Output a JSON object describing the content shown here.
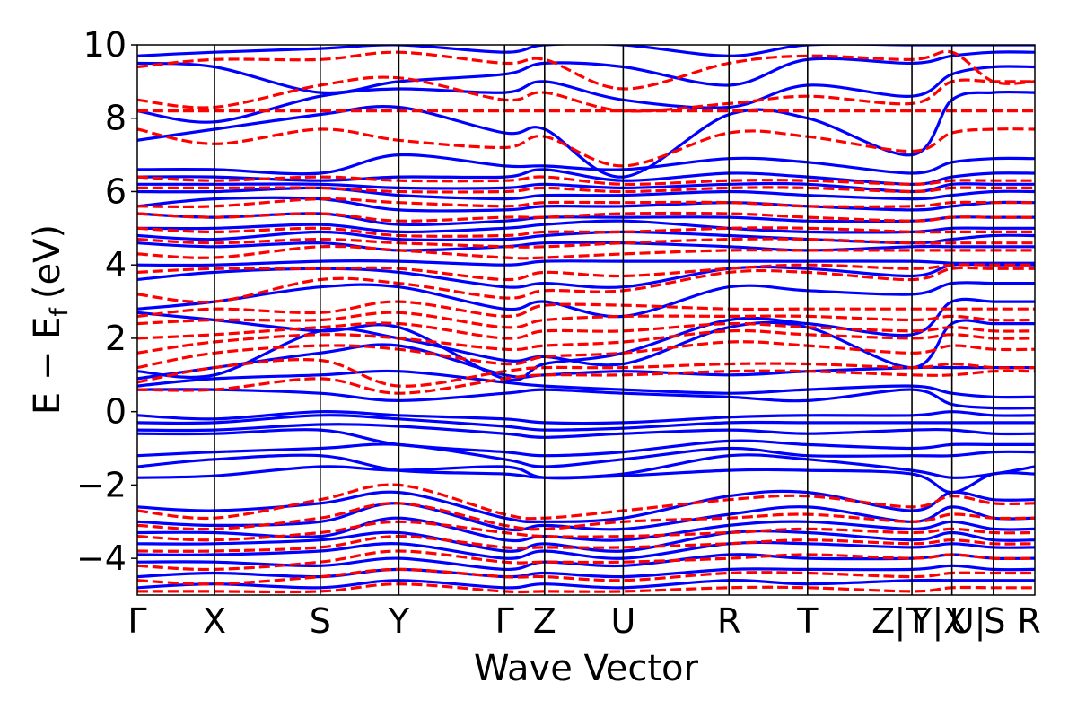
{
  "chart_data": {
    "type": "line",
    "title": "",
    "xlabel": "Wave Vector",
    "ylabel_main": "E − E",
    "ylabel_sub": "f",
    "ylabel_unit": "(eV)",
    "ylim": [
      -5,
      10
    ],
    "yticks": [
      -4,
      -2,
      0,
      2,
      4,
      6,
      8,
      10
    ],
    "ytick_labels": [
      "−4",
      "−2",
      "0",
      "2",
      "4",
      "6",
      "8",
      "10"
    ],
    "xlim": [
      0,
      3.14
    ],
    "kpoints": [
      {
        "label": "Γ",
        "x": 0.0
      },
      {
        "label": "X",
        "x": 0.27
      },
      {
        "label": "S",
        "x": 0.64
      },
      {
        "label": "Y",
        "x": 0.915
      },
      {
        "label": "Γ",
        "x": 1.285
      },
      {
        "label": "Z",
        "x": 1.425
      },
      {
        "label": "U",
        "x": 1.7
      },
      {
        "label": "R",
        "x": 2.07
      },
      {
        "label": "T",
        "x": 2.345
      },
      {
        "label": "Z",
        "x": 2.61
      },
      {
        "label": "|T",
        "x": 2.705
      },
      {
        "label": "Y|X",
        "x": 2.805
      },
      {
        "label": "U|",
        "x": 2.905
      },
      {
        "label": "S",
        "x": 3.0
      },
      {
        "label": "R",
        "x": 3.12
      }
    ],
    "vlines": [
      0.27,
      0.64,
      0.915,
      1.285,
      1.425,
      1.7,
      2.07,
      2.345,
      2.71,
      2.85,
      2.995
    ],
    "series": [
      {
        "style": "solid",
        "color": "#0000ff",
        "bands_x": [
          0,
          0.27,
          0.64,
          0.915,
          1.285,
          1.425,
          1.7,
          2.07,
          2.345,
          2.71,
          2.85,
          2.995,
          3.14
        ],
        "bands": [
          [
            -1.8,
            -1.75,
            -1.5,
            -1.6,
            -1.5,
            -1.8,
            -1.75,
            -1.6,
            -1.6,
            -1.7,
            -2.2,
            -1.7,
            -1.7
          ],
          [
            -1.5,
            -1.3,
            -1.2,
            -1.6,
            -1.7,
            -1.8,
            -1.7,
            -1.2,
            -1.3,
            -1.6,
            -1.8,
            -1.7,
            -1.5
          ],
          [
            -1.2,
            -1.1,
            -1.0,
            -0.9,
            -1.3,
            -1.5,
            -1.3,
            -1.0,
            -1.2,
            -1.2,
            -1.2,
            -1.1,
            -1.1
          ],
          [
            -0.6,
            -0.6,
            -0.5,
            -0.9,
            -1.1,
            -1.2,
            -1.1,
            -0.8,
            -0.9,
            -1.0,
            -0.9,
            -0.9,
            -0.9
          ],
          [
            -0.5,
            -0.5,
            -0.35,
            -0.4,
            -0.6,
            -0.7,
            -0.6,
            -0.5,
            -0.6,
            -0.5,
            -0.5,
            -0.6,
            -0.6
          ],
          [
            -0.3,
            -0.3,
            -0.1,
            -0.2,
            -0.4,
            -0.5,
            -0.45,
            -0.3,
            -0.3,
            -0.3,
            -0.3,
            -0.3,
            -0.3
          ],
          [
            -0.1,
            -0.2,
            0.0,
            -0.1,
            -0.2,
            -0.3,
            -0.3,
            -0.15,
            -0.1,
            -0.1,
            0.0,
            -0.1,
            -0.1
          ],
          [
            0.6,
            0.6,
            0.5,
            0.3,
            0.5,
            0.6,
            0.5,
            0.4,
            0.3,
            0.6,
            0.2,
            0.1,
            0.1
          ],
          [
            0.7,
            0.9,
            1.0,
            1.1,
            0.8,
            0.7,
            0.6,
            0.5,
            0.6,
            0.7,
            0.5,
            0.4,
            0.4
          ],
          [
            0.9,
            1.2,
            1.6,
            1.8,
            1.0,
            1.0,
            1.1,
            1.0,
            1.1,
            1.2,
            1.2,
            1.2,
            1.2
          ],
          [
            1.1,
            1.0,
            2.2,
            2.0,
            1.4,
            1.5,
            1.3,
            2.3,
            2.3,
            1.2,
            2.4,
            2.4,
            2.4
          ],
          [
            2.7,
            2.5,
            2.2,
            2.3,
            0.9,
            1.3,
            1.6,
            2.5,
            2.4,
            2.1,
            3.0,
            3.0,
            3.0
          ],
          [
            2.8,
            3.0,
            3.4,
            3.4,
            2.8,
            3.0,
            2.6,
            3.4,
            3.3,
            3.2,
            3.5,
            3.5,
            3.5
          ],
          [
            3.6,
            3.8,
            3.9,
            3.8,
            3.4,
            3.5,
            3.4,
            3.9,
            3.9,
            3.7,
            4.0,
            4.0,
            4.0
          ],
          [
            4.0,
            4.0,
            4.1,
            4.1,
            4.0,
            4.1,
            4.1,
            4.1,
            4.1,
            4.1,
            4.05,
            4.05,
            4.05
          ],
          [
            4.6,
            4.5,
            4.6,
            4.4,
            4.5,
            4.6,
            4.6,
            4.5,
            4.4,
            4.5,
            4.5,
            4.5,
            4.5
          ],
          [
            4.8,
            4.7,
            4.9,
            4.7,
            4.7,
            4.8,
            4.9,
            4.8,
            4.7,
            4.6,
            4.7,
            4.8,
            4.8
          ],
          [
            5.0,
            5.0,
            5.1,
            4.9,
            5.0,
            5.1,
            5.2,
            5.0,
            4.9,
            4.9,
            5.0,
            5.0,
            5.0
          ],
          [
            5.4,
            5.3,
            5.4,
            5.1,
            5.2,
            5.3,
            5.3,
            5.3,
            5.2,
            5.2,
            5.3,
            5.3,
            5.3
          ],
          [
            5.6,
            5.8,
            5.8,
            5.5,
            5.5,
            5.6,
            5.6,
            5.7,
            5.6,
            5.5,
            5.6,
            5.7,
            5.7
          ],
          [
            6.0,
            6.0,
            6.1,
            5.9,
            5.8,
            5.9,
            5.9,
            6.0,
            5.9,
            5.8,
            5.9,
            6.0,
            6.0
          ],
          [
            6.2,
            6.2,
            6.2,
            6.1,
            6.1,
            6.2,
            6.1,
            6.2,
            6.2,
            6.0,
            6.2,
            6.2,
            6.2
          ],
          [
            6.4,
            6.4,
            6.3,
            6.4,
            6.4,
            6.6,
            6.3,
            6.5,
            6.4,
            6.2,
            6.4,
            6.5,
            6.5
          ],
          [
            6.6,
            6.6,
            6.5,
            7.0,
            6.7,
            6.7,
            6.6,
            6.9,
            6.8,
            6.5,
            6.8,
            6.9,
            6.9
          ],
          [
            7.4,
            7.7,
            8.1,
            8.3,
            7.6,
            7.7,
            6.4,
            8.1,
            8.0,
            7.0,
            8.5,
            8.7,
            8.7
          ],
          [
            8.2,
            7.9,
            8.6,
            8.8,
            8.7,
            9.0,
            8.5,
            8.3,
            8.9,
            8.6,
            9.2,
            9.4,
            9.4
          ],
          [
            9.5,
            9.4,
            8.7,
            9.0,
            9.2,
            9.5,
            9.4,
            8.9,
            9.6,
            9.5,
            9.7,
            9.8,
            9.8
          ],
          [
            9.7,
            9.8,
            9.9,
            10.0,
            9.8,
            10.0,
            10.0,
            9.7,
            10.0,
            10.0,
            10.0,
            10.0,
            10.0
          ],
          [
            -2.6,
            -2.7,
            -2.5,
            -2.2,
            -2.9,
            -3.0,
            -2.9,
            -2.3,
            -2.2,
            -2.7,
            -2.2,
            -2.4,
            -2.4
          ],
          [
            -3.0,
            -3.1,
            -3.0,
            -2.5,
            -3.2,
            -3.1,
            -3.2,
            -2.8,
            -2.6,
            -3.0,
            -2.6,
            -2.9,
            -2.9
          ],
          [
            -3.3,
            -3.3,
            -3.4,
            -2.9,
            -3.5,
            -3.4,
            -3.5,
            -3.1,
            -3.0,
            -3.2,
            -3.0,
            -3.2,
            -3.2
          ],
          [
            -3.6,
            -3.6,
            -3.5,
            -3.3,
            -3.8,
            -3.6,
            -3.8,
            -3.3,
            -3.3,
            -3.5,
            -3.3,
            -3.5,
            -3.5
          ],
          [
            -3.9,
            -3.9,
            -3.8,
            -3.6,
            -4.0,
            -3.8,
            -4.0,
            -3.6,
            -3.6,
            -3.7,
            -3.6,
            -3.7,
            -3.7
          ],
          [
            -4.1,
            -4.1,
            -4.2,
            -4.0,
            -4.3,
            -4.1,
            -4.2,
            -3.9,
            -4.0,
            -4.0,
            -3.9,
            -4.0,
            -4.0
          ],
          [
            -4.5,
            -4.4,
            -4.5,
            -4.3,
            -4.5,
            -4.4,
            -4.5,
            -4.3,
            -4.3,
            -4.3,
            -4.2,
            -4.3,
            -4.3
          ],
          [
            -4.8,
            -4.7,
            -4.8,
            -4.6,
            -4.8,
            -4.7,
            -4.8,
            -4.6,
            -4.7,
            -4.6,
            -4.6,
            -4.6,
            -4.6
          ]
        ]
      },
      {
        "style": "dashed",
        "color": "#ff0000",
        "bands_x": [
          0,
          0.27,
          0.64,
          0.915,
          1.285,
          1.425,
          1.7,
          2.07,
          2.345,
          2.71,
          2.85,
          2.995,
          3.14
        ],
        "bands": [
          [
            0.6,
            0.6,
            0.9,
            0.5,
            0.9,
            1.0,
            1.0,
            1.1,
            1.1,
            1.0,
            1.0,
            1.1,
            1.1
          ],
          [
            0.8,
            1.2,
            1.4,
            0.7,
            1.1,
            1.2,
            1.2,
            1.3,
            1.3,
            1.2,
            1.3,
            1.2,
            1.2
          ],
          [
            1.2,
            1.6,
            1.8,
            1.7,
            1.3,
            1.5,
            1.6,
            1.9,
            1.8,
            1.6,
            1.8,
            1.7,
            1.7
          ],
          [
            1.6,
            1.9,
            2.1,
            2.0,
            1.7,
            1.8,
            1.9,
            2.2,
            2.1,
            2.0,
            2.1,
            2.0,
            2.0
          ],
          [
            2.0,
            2.1,
            2.3,
            2.4,
            2.0,
            2.2,
            2.2,
            2.4,
            2.3,
            2.2,
            2.3,
            2.2,
            2.2
          ],
          [
            2.4,
            2.5,
            2.5,
            2.7,
            2.3,
            2.5,
            2.6,
            2.6,
            2.6,
            2.5,
            2.6,
            2.5,
            2.5
          ],
          [
            2.6,
            2.8,
            2.7,
            3.0,
            2.6,
            2.9,
            2.9,
            2.8,
            2.8,
            2.8,
            2.8,
            2.8,
            2.8
          ],
          [
            3.2,
            3.0,
            3.6,
            3.5,
            3.1,
            3.3,
            3.3,
            3.8,
            3.8,
            3.6,
            3.9,
            3.9,
            3.9
          ],
          [
            3.8,
            3.9,
            3.9,
            3.9,
            3.6,
            3.8,
            3.7,
            3.9,
            4.0,
            3.9,
            4.0,
            4.0,
            4.0
          ],
          [
            4.3,
            4.2,
            4.5,
            4.4,
            4.2,
            4.2,
            4.3,
            4.4,
            4.4,
            4.4,
            4.4,
            4.4,
            4.4
          ],
          [
            4.7,
            4.6,
            4.7,
            4.6,
            4.5,
            4.5,
            4.6,
            4.7,
            4.7,
            4.6,
            4.6,
            4.6,
            4.6
          ],
          [
            5.0,
            4.9,
            5.0,
            4.8,
            4.8,
            4.9,
            4.9,
            5.0,
            5.0,
            4.9,
            4.9,
            4.9,
            4.9
          ],
          [
            5.4,
            5.3,
            5.4,
            5.2,
            5.3,
            5.3,
            5.4,
            5.4,
            5.3,
            5.2,
            5.3,
            5.3,
            5.3
          ],
          [
            5.6,
            5.6,
            5.8,
            5.7,
            5.6,
            5.7,
            5.7,
            5.7,
            5.6,
            5.6,
            5.7,
            5.7,
            5.7
          ],
          [
            6.1,
            6.1,
            6.1,
            6.0,
            6.0,
            6.1,
            6.0,
            6.1,
            6.1,
            6.0,
            6.1,
            6.1,
            6.1
          ],
          [
            6.4,
            6.3,
            6.4,
            6.3,
            6.3,
            6.4,
            6.2,
            6.3,
            6.3,
            6.2,
            6.3,
            6.3,
            6.3
          ],
          [
            7.7,
            7.3,
            7.7,
            7.4,
            7.2,
            7.5,
            6.7,
            7.6,
            7.5,
            7.1,
            7.6,
            7.7,
            7.7
          ],
          [
            8.2,
            8.2,
            8.2,
            8.2,
            8.2,
            8.2,
            8.2,
            8.2,
            8.2,
            8.2,
            8.2,
            8.2,
            8.2
          ],
          [
            8.5,
            8.3,
            8.9,
            9.1,
            8.5,
            8.7,
            8.2,
            8.4,
            8.6,
            8.4,
            9.0,
            9.0,
            9.0
          ],
          [
            9.4,
            9.6,
            9.6,
            9.8,
            9.5,
            9.6,
            8.8,
            9.5,
            9.7,
            9.6,
            9.8,
            9.0,
            9.0
          ],
          [
            -2.7,
            -2.9,
            -2.4,
            -2.0,
            -2.8,
            -2.9,
            -2.7,
            -2.4,
            -2.3,
            -2.6,
            -2.3,
            -2.5,
            -2.5
          ],
          [
            -3.1,
            -3.2,
            -2.9,
            -2.5,
            -3.1,
            -3.2,
            -3.0,
            -2.9,
            -2.8,
            -3.0,
            -2.8,
            -2.9,
            -2.9
          ],
          [
            -3.4,
            -3.5,
            -3.3,
            -3.0,
            -3.3,
            -3.4,
            -3.4,
            -3.3,
            -3.2,
            -3.3,
            -3.2,
            -3.3,
            -3.3
          ],
          [
            -3.8,
            -3.8,
            -3.7,
            -3.4,
            -3.7,
            -3.7,
            -3.7,
            -3.6,
            -3.5,
            -3.6,
            -3.5,
            -3.6,
            -3.6
          ],
          [
            -4.2,
            -4.3,
            -4.1,
            -3.8,
            -4.1,
            -4.1,
            -4.1,
            -4.0,
            -3.9,
            -4.0,
            -3.9,
            -4.0,
            -4.0
          ],
          [
            -4.6,
            -4.7,
            -4.5,
            -4.3,
            -4.5,
            -4.5,
            -4.6,
            -4.4,
            -4.4,
            -4.5,
            -4.4,
            -4.4,
            -4.4
          ],
          [
            -4.9,
            -4.9,
            -4.9,
            -4.7,
            -4.9,
            -4.9,
            -4.9,
            -4.8,
            -4.8,
            -4.9,
            -4.8,
            -4.8,
            -4.8
          ]
        ]
      }
    ]
  }
}
